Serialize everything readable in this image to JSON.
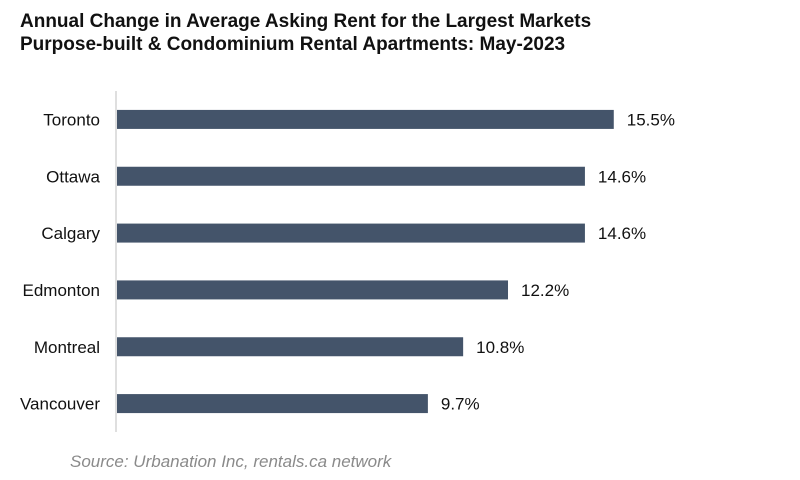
{
  "title_line1": "Annual Change in Average Asking Rent for the Largest Markets",
  "title_line2": "Purpose-built & Condominium Rental Apartments: May-2023",
  "source": "Source: Urbanation Inc, rentals.ca network",
  "colors": {
    "bar": "#44546a",
    "axis": "#bfbfbf",
    "text": "#111111",
    "source": "#8a8a8a"
  },
  "chart_data": {
    "type": "bar",
    "orientation": "horizontal",
    "categories": [
      "Toronto",
      "Ottawa",
      "Calgary",
      "Edmonton",
      "Montreal",
      "Vancouver"
    ],
    "values": [
      15.5,
      14.6,
      14.6,
      12.2,
      10.8,
      9.7
    ],
    "data_labels": [
      "15.5%",
      "14.6%",
      "14.6%",
      "12.2%",
      "10.8%",
      "9.7%"
    ],
    "title": "Annual Change in Average Asking Rent for the Largest Markets",
    "subtitle": "Purpose-built & Condominium Rental Apartments: May-2023",
    "xlabel": "",
    "ylabel": "",
    "xlim": [
      0,
      20
    ],
    "grid": false,
    "legend": "none"
  }
}
